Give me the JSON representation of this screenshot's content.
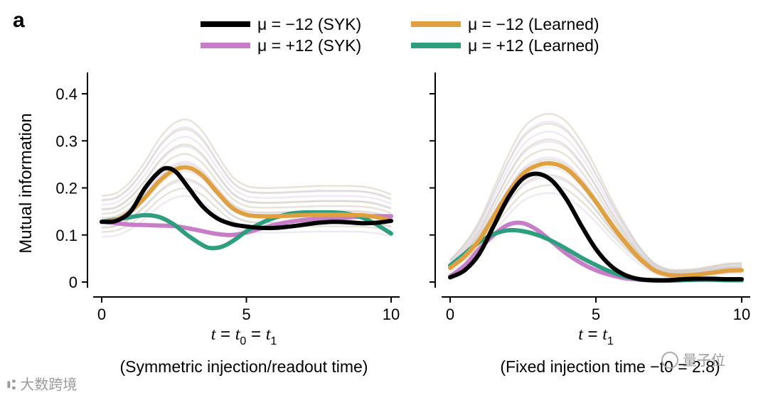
{
  "figure": {
    "panel_letter": "a",
    "watermark_left": "⑆ 大数跨境",
    "watermark_right": "量子位"
  },
  "legend": {
    "items": [
      {
        "text": "μ = −12 (SYK)",
        "color": "#000000"
      },
      {
        "text": "μ = −12 (Learned)",
        "color": "#E0A040"
      },
      {
        "text": "μ = +12 (SYK)",
        "color": "#C77DC7"
      },
      {
        "text": "μ = +12 (Learned)",
        "color": "#2E9E7E"
      }
    ]
  },
  "chart_data": [
    {
      "type": "line",
      "name": "symmetric",
      "title": "",
      "xlabel": "t = t0 = t1",
      "xlabel_parts": {
        "t": "t",
        "eq1": " = ",
        "t0": "t",
        "sub0": "0",
        "eq2": " = ",
        "t1": "t",
        "sub1": "1"
      },
      "caption": "(Symmetric injection/readout time)",
      "ylabel": "Mutual information",
      "xlim": [
        0,
        10
      ],
      "ylim": [
        0,
        0.42
      ],
      "xticks": [
        0,
        5,
        10
      ],
      "xtick_labels": [
        "0",
        "5",
        "10"
      ],
      "yticks": [
        0,
        0.1,
        0.2,
        0.3,
        0.4
      ],
      "ytick_labels": [
        "0",
        "0.1",
        "0.2",
        "0.3",
        "0.4"
      ],
      "series": [
        {
          "name": "μ = −12 (SYK)",
          "color": "#000000",
          "x": [
            0,
            0.5,
            1,
            1.5,
            2,
            2.3,
            2.6,
            3,
            3.5,
            4,
            4.5,
            5,
            5.5,
            6,
            6.5,
            7,
            7.5,
            8,
            8.5,
            9,
            9.5,
            10
          ],
          "y": [
            0.128,
            0.13,
            0.15,
            0.2,
            0.235,
            0.242,
            0.232,
            0.2,
            0.16,
            0.135,
            0.123,
            0.118,
            0.115,
            0.115,
            0.118,
            0.122,
            0.126,
            0.128,
            0.127,
            0.125,
            0.126,
            0.13
          ]
        },
        {
          "name": "μ = −12 (Learned)",
          "color": "#E0A040",
          "x": [
            0,
            0.5,
            1,
            1.5,
            2,
            2.5,
            3,
            3.5,
            4,
            4.5,
            5,
            5.5,
            6,
            6.5,
            7,
            7.5,
            8,
            8.5,
            9,
            9.5,
            10
          ],
          "y": [
            0.128,
            0.132,
            0.15,
            0.18,
            0.215,
            0.238,
            0.243,
            0.225,
            0.19,
            0.158,
            0.143,
            0.14,
            0.14,
            0.141,
            0.142,
            0.143,
            0.143,
            0.143,
            0.142,
            0.138,
            0.13
          ]
        },
        {
          "name": "μ = +12 (SYK)",
          "color": "#C77DC7",
          "x": [
            0,
            0.5,
            1,
            1.5,
            2,
            2.5,
            3,
            3.5,
            4,
            4.5,
            5,
            5.5,
            6,
            6.5,
            7,
            7.5,
            8,
            8.5,
            9,
            9.5,
            10
          ],
          "y": [
            0.128,
            0.125,
            0.122,
            0.121,
            0.12,
            0.119,
            0.114,
            0.108,
            0.102,
            0.1,
            0.105,
            0.114,
            0.122,
            0.128,
            0.132,
            0.134,
            0.135,
            0.137,
            0.139,
            0.14,
            0.14
          ]
        },
        {
          "name": "μ = +12 (Learned)",
          "color": "#2E9E7E",
          "x": [
            0,
            0.5,
            1,
            1.5,
            2,
            2.5,
            3,
            3.5,
            3.8,
            4.2,
            4.6,
            5,
            5.5,
            6,
            6.5,
            7,
            7.5,
            8,
            8.5,
            9,
            9.5,
            10
          ],
          "y": [
            0.128,
            0.133,
            0.138,
            0.142,
            0.138,
            0.122,
            0.098,
            0.078,
            0.072,
            0.076,
            0.09,
            0.108,
            0.125,
            0.137,
            0.145,
            0.148,
            0.148,
            0.148,
            0.145,
            0.137,
            0.122,
            0.103
          ]
        }
      ]
    },
    {
      "type": "line",
      "name": "fixed",
      "title": "",
      "xlabel": "t = t1",
      "xlabel_parts": {
        "t": "t",
        "eq1": " = ",
        "t1": "t",
        "sub1": "1"
      },
      "caption": "(Fixed injection time −t0 = 2.8)",
      "ylabel": "",
      "xlim": [
        0,
        10
      ],
      "ylim": [
        0,
        0.42
      ],
      "xticks": [
        0,
        5,
        10
      ],
      "xtick_labels": [
        "0",
        "5",
        "10"
      ],
      "yticks": [
        0,
        0.1,
        0.2,
        0.3,
        0.4
      ],
      "ytick_labels": [],
      "series": [
        {
          "name": "μ = −12 (SYK)",
          "color": "#000000",
          "x": [
            0,
            0.5,
            1,
            1.5,
            2,
            2.5,
            3,
            3.5,
            4,
            4.5,
            5,
            5.5,
            6,
            6.5,
            7,
            7.5,
            8,
            8.5,
            9,
            9.5,
            10
          ],
          "y": [
            0.01,
            0.025,
            0.06,
            0.12,
            0.18,
            0.22,
            0.23,
            0.215,
            0.175,
            0.12,
            0.07,
            0.035,
            0.015,
            0.006,
            0.004,
            0.004,
            0.006,
            0.007,
            0.007,
            0.006,
            0.006
          ]
        },
        {
          "name": "μ = −12 (Learned)",
          "color": "#E0A040",
          "x": [
            0,
            0.5,
            1,
            1.5,
            2,
            2.5,
            3,
            3.5,
            4,
            4.5,
            5,
            5.5,
            6,
            6.5,
            7,
            7.5,
            8,
            8.5,
            9,
            9.5,
            10
          ],
          "y": [
            0.03,
            0.055,
            0.09,
            0.14,
            0.19,
            0.23,
            0.248,
            0.252,
            0.24,
            0.21,
            0.17,
            0.125,
            0.085,
            0.05,
            0.025,
            0.015,
            0.014,
            0.016,
            0.02,
            0.024,
            0.025
          ]
        },
        {
          "name": "μ = +12 (SYK)",
          "color": "#C77DC7",
          "x": [
            0,
            0.5,
            1,
            1.5,
            2,
            2.5,
            3,
            3.5,
            4,
            4.5,
            5,
            5.5,
            6,
            6.5,
            7,
            7.5,
            8,
            8.5,
            9,
            9.5,
            10
          ],
          "y": [
            0.012,
            0.035,
            0.07,
            0.1,
            0.122,
            0.125,
            0.11,
            0.085,
            0.06,
            0.04,
            0.025,
            0.015,
            0.008,
            0.005,
            0.004,
            0.004,
            0.005,
            0.005,
            0.005,
            0.004,
            0.004
          ]
        },
        {
          "name": "μ = +12 (Learned)",
          "color": "#2E9E7E",
          "x": [
            0,
            0.5,
            1,
            1.5,
            2,
            2.5,
            3,
            3.5,
            4,
            4.5,
            5,
            5.5,
            6,
            6.5,
            7,
            7.5,
            8,
            8.5,
            9,
            9.5,
            10
          ],
          "y": [
            0.035,
            0.06,
            0.085,
            0.102,
            0.11,
            0.108,
            0.1,
            0.087,
            0.07,
            0.052,
            0.036,
            0.022,
            0.012,
            0.006,
            0.003,
            0.003,
            0.004,
            0.005,
            0.005,
            0.004,
            0.004
          ]
        }
      ]
    }
  ]
}
